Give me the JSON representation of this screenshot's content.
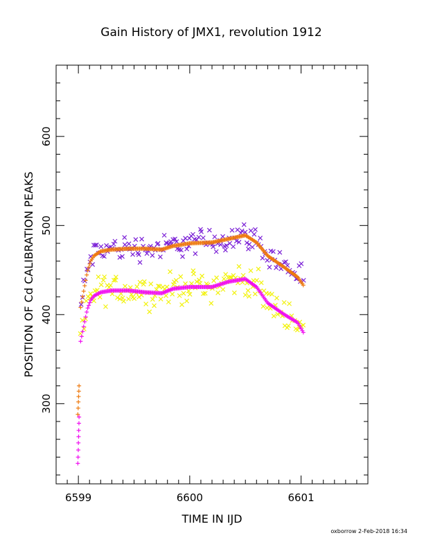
{
  "chart_data": {
    "type": "scatter",
    "title": "Gain History of JMX1, revolution 1912",
    "xlabel": "TIME IN IJD",
    "ylabel": "POSITION OF Cd CALIBRATION PEAKS",
    "xlim": [
      6598.8,
      6601.6
    ],
    "ylim": [
      210,
      680
    ],
    "xticks": [
      6599,
      6600,
      6601
    ],
    "xtick_labels": [
      "6599",
      "6600",
      "6601"
    ],
    "yticks": [
      300,
      400,
      500,
      600
    ],
    "ytick_labels": [
      "300",
      "400",
      "500",
      "600"
    ],
    "grid": false,
    "legend": "none",
    "series": [
      {
        "marker": "x",
        "color": "#7a1fd6",
        "scatter": 11,
        "x": [
          6599.02,
          6599.05,
          6599.08,
          6599.11,
          6599.14,
          6599.2,
          6599.3,
          6599.45,
          6599.6,
          6599.75,
          6599.85,
          6600.0,
          6600.2,
          6600.35,
          6600.5,
          6600.6,
          6600.7,
          6600.85,
          6600.97,
          6601.02
        ],
        "y": [
          410,
          430,
          450,
          462,
          468,
          472,
          474,
          475,
          475,
          474,
          478,
          481,
          482,
          486,
          490,
          482,
          468,
          455,
          444,
          435
        ]
      },
      {
        "marker": "+",
        "color": "#ee7a10",
        "scatter": 0,
        "dense": true,
        "x": [
          6599.02,
          6599.05,
          6599.08,
          6599.11,
          6599.14,
          6599.2,
          6599.3,
          6599.45,
          6599.6,
          6599.75,
          6599.85,
          6600.0,
          6600.2,
          6600.35,
          6600.5,
          6600.6,
          6600.7,
          6600.85,
          6600.97,
          6601.02
        ],
        "y": [
          408,
          428,
          448,
          460,
          466,
          471,
          473,
          474,
          474,
          473,
          477,
          480,
          481,
          485,
          489,
          481,
          466,
          453,
          442,
          433
        ]
      },
      {
        "marker": "x",
        "color": "#f2f20a",
        "scatter": 13,
        "x": [
          6599.02,
          6599.05,
          6599.08,
          6599.11,
          6599.14,
          6599.2,
          6599.3,
          6599.45,
          6599.6,
          6599.75,
          6599.85,
          6600.0,
          6600.2,
          6600.35,
          6600.5,
          6600.6,
          6600.7,
          6600.85,
          6600.97,
          6601.02
        ],
        "y": [
          372,
          390,
          408,
          418,
          423,
          427,
          428,
          428,
          426,
          425,
          430,
          432,
          432,
          438,
          440,
          432,
          415,
          402,
          392,
          382
        ]
      },
      {
        "marker": "+",
        "color": "#f010f0",
        "scatter": 0,
        "dense": true,
        "x": [
          6599.02,
          6599.05,
          6599.08,
          6599.11,
          6599.14,
          6599.2,
          6599.3,
          6599.45,
          6599.6,
          6599.75,
          6599.85,
          6600.0,
          6600.2,
          6600.35,
          6600.5,
          6600.6,
          6600.7,
          6600.85,
          6600.97,
          6601.02
        ],
        "y": [
          370,
          388,
          406,
          416,
          421,
          425,
          427,
          427,
          425,
          424,
          429,
          431,
          431,
          437,
          440,
          431,
          413,
          400,
          391,
          380
        ]
      },
      {
        "marker": "+",
        "color": "#ee7a10",
        "scatter": 0,
        "x": [
          6598.995,
          6598.998,
          6599.0,
          6599.002,
          6599.004,
          6599.006
        ],
        "y": [
          288,
          295,
          302,
          308,
          314,
          320
        ]
      },
      {
        "marker": "+",
        "color": "#f010f0",
        "scatter": 0,
        "x": [
          6598.995,
          6598.997,
          6598.999,
          6599.0,
          6599.002,
          6599.003,
          6599.005,
          6599.006
        ],
        "y": [
          233,
          240,
          248,
          256,
          263,
          270,
          278,
          285
        ]
      }
    ]
  },
  "footer": {
    "text": "oxborrow  2-Feb-2018 16:34"
  }
}
